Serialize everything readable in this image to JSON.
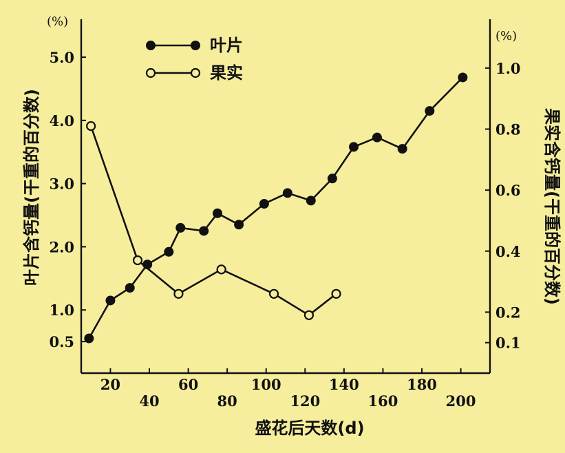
{
  "chart_data": {
    "type": "line",
    "title": "",
    "xlabel": "盛花后天数(d)",
    "ylabel_left": "叶片含钙量(干重的百分数)",
    "ylabel_right": "果实含钙量(干重的百分数)",
    "left_unit": "(%)",
    "right_unit": "(%)",
    "xlim": [
      5,
      215
    ],
    "ylim_left": [
      0.0,
      5.6
    ],
    "ylim_right": [
      0.0,
      1.16
    ],
    "x_ticks": [
      20,
      40,
      60,
      80,
      100,
      120,
      140,
      160,
      180,
      200
    ],
    "left_ticks": [
      "0.5",
      "1.0",
      "2.0",
      "3.0",
      "4.0",
      "5.0"
    ],
    "right_ticks": [
      "0.1",
      "0.2",
      "0.4",
      "0.6",
      "0.8",
      "1.0"
    ],
    "legend_position": "top-left",
    "series": [
      {
        "name": "叶片",
        "axis": "left",
        "marker": "filled-circle",
        "points": [
          {
            "x": 9,
            "y": 0.55
          },
          {
            "x": 20,
            "y": 1.15
          },
          {
            "x": 30,
            "y": 1.35
          },
          {
            "x": 39,
            "y": 1.72
          },
          {
            "x": 50,
            "y": 1.92
          },
          {
            "x": 56,
            "y": 2.3
          },
          {
            "x": 68,
            "y": 2.25
          },
          {
            "x": 75,
            "y": 2.53
          },
          {
            "x": 86,
            "y": 2.35
          },
          {
            "x": 99,
            "y": 2.68
          },
          {
            "x": 111,
            "y": 2.85
          },
          {
            "x": 123,
            "y": 2.73
          },
          {
            "x": 134,
            "y": 3.08
          },
          {
            "x": 145,
            "y": 3.58
          },
          {
            "x": 157,
            "y": 3.73
          },
          {
            "x": 170,
            "y": 3.55
          },
          {
            "x": 184,
            "y": 4.15
          },
          {
            "x": 201,
            "y": 4.68
          }
        ]
      },
      {
        "name": "果实",
        "axis": "right",
        "marker": "open-circle",
        "points": [
          {
            "x": 10,
            "y": 0.81
          },
          {
            "x": 34,
            "y": 0.37
          },
          {
            "x": 55,
            "y": 0.26
          },
          {
            "x": 77,
            "y": 0.34
          },
          {
            "x": 104,
            "y": 0.26
          },
          {
            "x": 122,
            "y": 0.19
          },
          {
            "x": 136,
            "y": 0.26
          }
        ]
      }
    ]
  }
}
